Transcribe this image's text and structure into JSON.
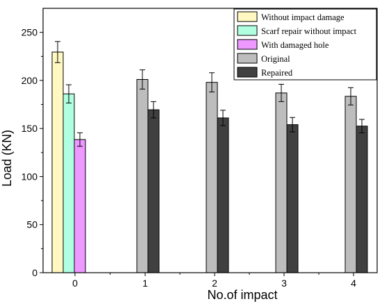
{
  "chart_data": {
    "type": "bar",
    "xlabel": "No.of impact",
    "ylabel": "Load (KN)",
    "ylim": [
      0,
      275
    ],
    "yticks": [
      0,
      50,
      100,
      150,
      200,
      250
    ],
    "grid": false,
    "legend_position": "top-right",
    "categories": [
      "0",
      "1",
      "2",
      "3",
      "4"
    ],
    "series": [
      {
        "name": "Without impact damage",
        "color": "#fff8c0",
        "values": [
          229.5,
          null,
          null,
          null,
          null
        ],
        "errors": [
          11,
          null,
          null,
          null,
          null
        ]
      },
      {
        "name": "Scarf repair without impact",
        "color": "#b0ffe0",
        "values": [
          186,
          null,
          null,
          null,
          null
        ],
        "errors": [
          9.5,
          null,
          null,
          null,
          null
        ]
      },
      {
        "name": "With damaged hole",
        "color": "#ee99ff",
        "values": [
          138.5,
          null,
          null,
          null,
          null
        ],
        "errors": [
          7,
          null,
          null,
          null,
          null
        ]
      },
      {
        "name": "Original",
        "color": "#bdbdbd",
        "values": [
          null,
          201,
          198,
          187,
          183.5
        ],
        "errors": [
          null,
          10,
          10,
          9,
          9
        ]
      },
      {
        "name": "Repaired",
        "color": "#404040",
        "values": [
          null,
          169.5,
          161,
          154,
          152.5
        ],
        "errors": [
          null,
          8.5,
          8,
          7.5,
          7
        ]
      }
    ]
  }
}
